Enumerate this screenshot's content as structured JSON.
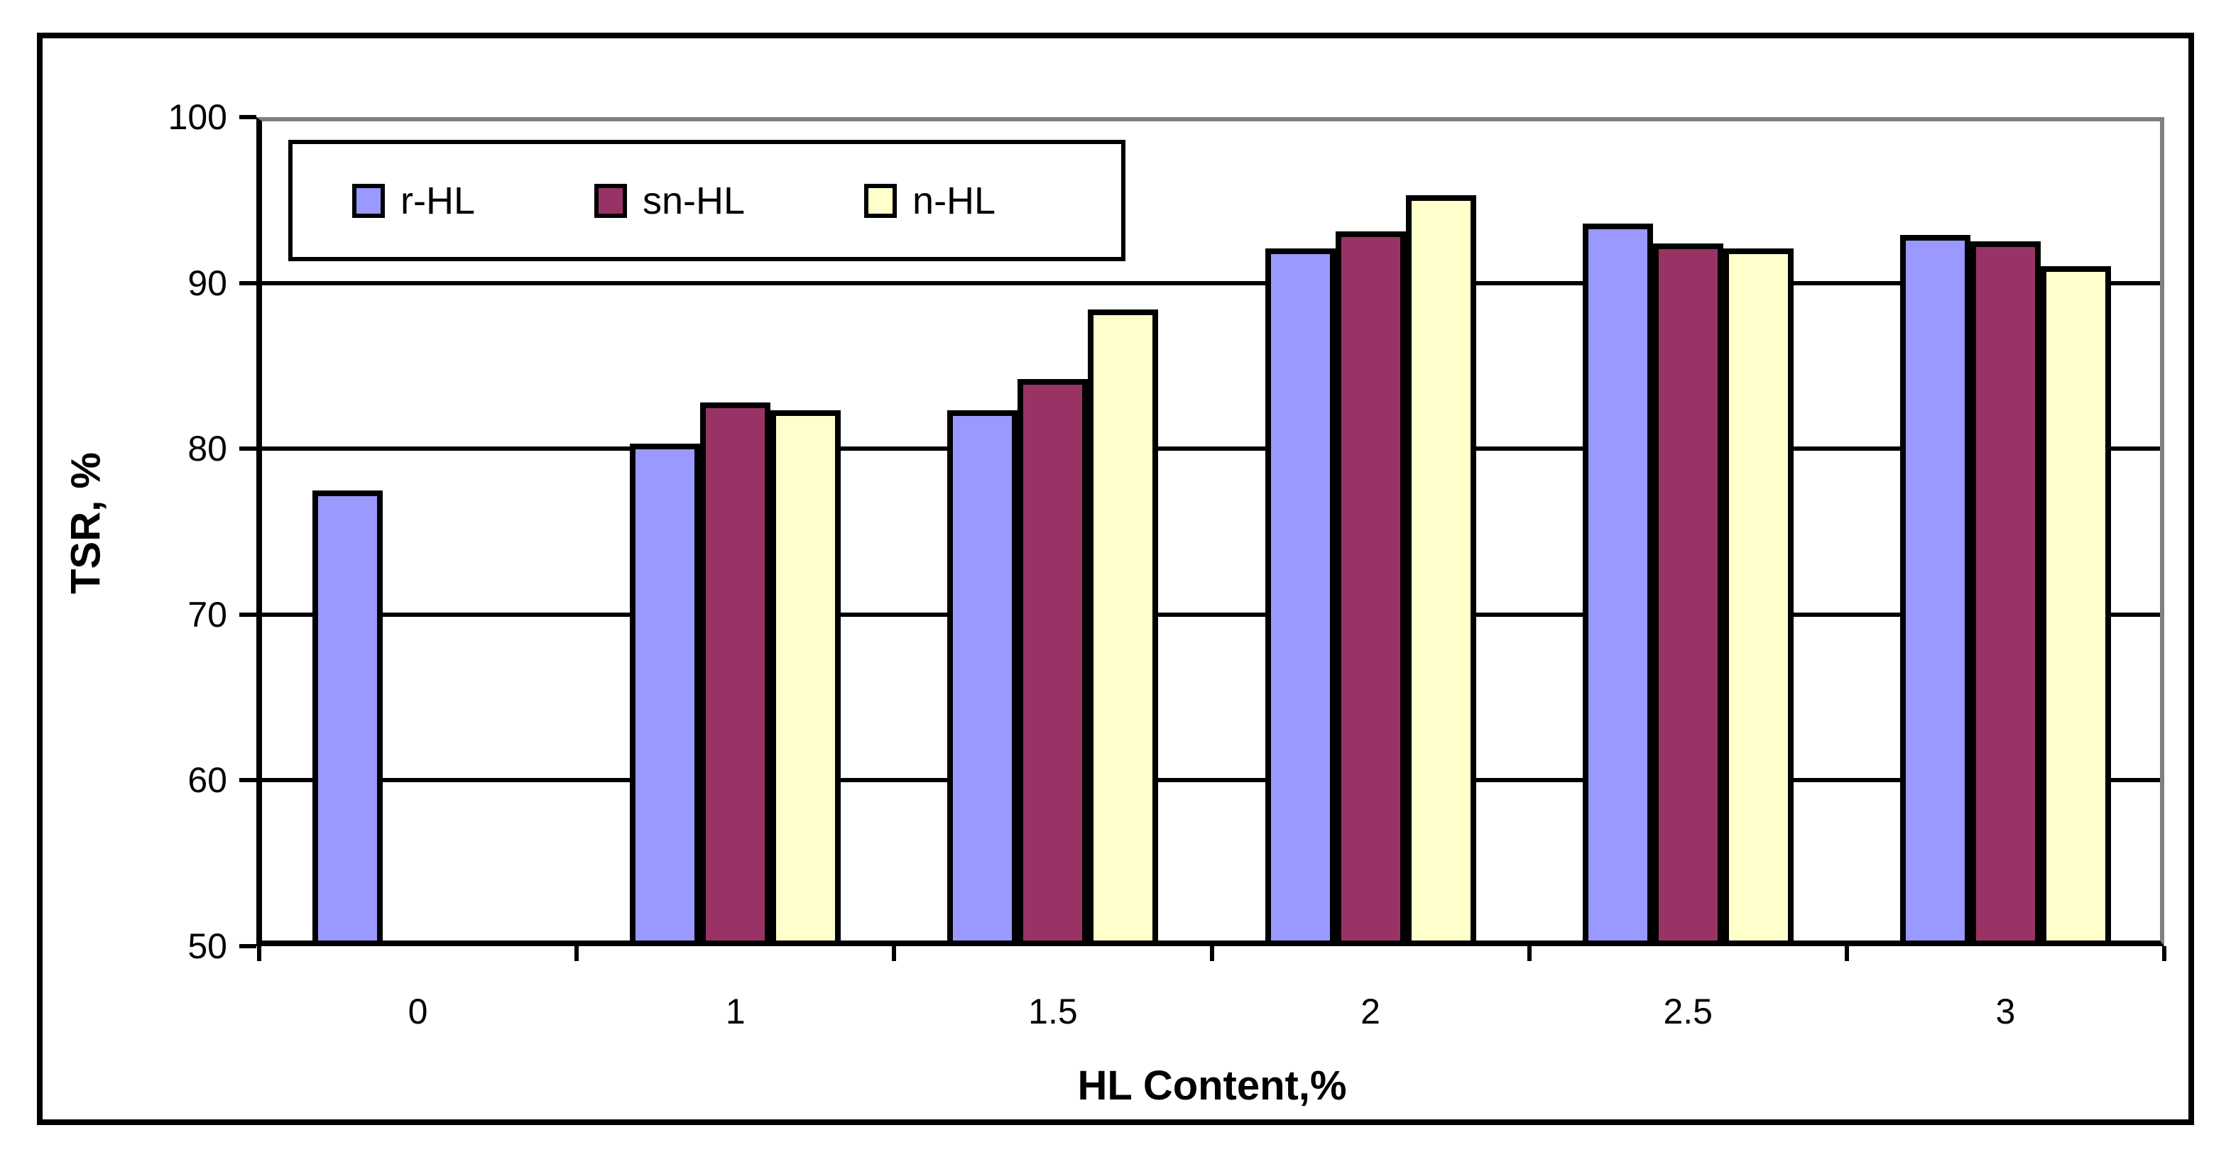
{
  "chart_data": {
    "type": "bar",
    "title": "",
    "xlabel": "HL Content,%",
    "ylabel": "TSR, %",
    "categories": [
      "0",
      "1",
      "1.5",
      "2",
      "2.5",
      "3"
    ],
    "series": [
      {
        "name": "r-HL",
        "color": "#9999FF",
        "values": [
          77.5,
          80.3,
          82.3,
          92.1,
          93.6,
          92.9
        ]
      },
      {
        "name": "sn-HL",
        "color": "#993366",
        "values": [
          null,
          82.8,
          84.2,
          93.1,
          92.4,
          92.5
        ]
      },
      {
        "name": "n-HL",
        "color": "#FFFFCC",
        "values": [
          null,
          82.3,
          88.4,
          95.3,
          92.1,
          91.0
        ]
      }
    ],
    "ylim": [
      50,
      100
    ],
    "yticks": [
      "50",
      "60",
      "70",
      "80",
      "90",
      "100"
    ],
    "gridline_values": [
      60,
      70,
      80,
      90
    ],
    "grid": true,
    "legend_position": "top-left"
  },
  "colors": {
    "background": "#FFFFFF",
    "axis": "#000000",
    "gridline": "#000000",
    "plot_border": "#808080",
    "bar_border": "#000000",
    "frame": "#000000",
    "text": "#000000"
  }
}
